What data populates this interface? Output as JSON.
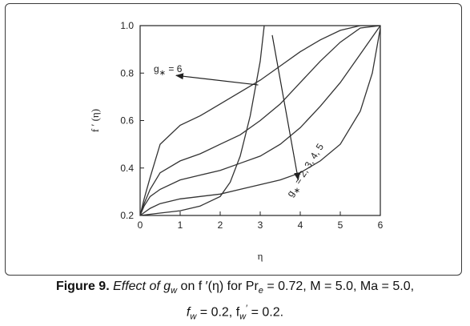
{
  "chart_data": {
    "type": "line",
    "xlabel": "η",
    "ylabel": "f ′ (η)",
    "xlim": [
      0,
      6
    ],
    "ylim": [
      0.2,
      1.0
    ],
    "x_ticks": [
      "0",
      "1",
      "2",
      "3",
      "4",
      "5",
      "6"
    ],
    "y_ticks": [
      "0.2",
      "0.4",
      "0.6",
      "0.8",
      "1.0"
    ],
    "grid": false,
    "legend": "none",
    "series": [
      {
        "x": [
          0,
          0.1,
          0.25,
          0.5,
          1,
          1.5,
          2,
          2.5,
          3,
          3.5,
          4,
          4.5,
          5,
          5.5,
          5.8,
          6.0
        ],
        "y": [
          0.2,
          0.27,
          0.36,
          0.5,
          0.58,
          0.62,
          0.67,
          0.72,
          0.77,
          0.83,
          0.89,
          0.94,
          0.98,
          1.0,
          1.0,
          1.0
        ]
      },
      {
        "x": [
          0,
          0.1,
          0.25,
          0.5,
          1,
          1.5,
          2,
          2.5,
          3,
          3.5,
          4,
          4.5,
          5,
          5.5,
          6.0
        ],
        "y": [
          0.2,
          0.25,
          0.31,
          0.38,
          0.43,
          0.46,
          0.5,
          0.54,
          0.6,
          0.67,
          0.76,
          0.85,
          0.93,
          0.99,
          1.0
        ]
      },
      {
        "x": [
          0,
          0.1,
          0.25,
          0.5,
          1,
          1.5,
          2,
          2.5,
          3,
          3.5,
          4,
          4.5,
          5,
          5.5,
          6.0
        ],
        "y": [
          0.2,
          0.24,
          0.28,
          0.31,
          0.35,
          0.37,
          0.39,
          0.42,
          0.45,
          0.5,
          0.57,
          0.66,
          0.76,
          0.88,
          1.0
        ]
      },
      {
        "x": [
          0,
          0.25,
          0.5,
          1,
          1.5,
          2,
          2.5,
          3,
          3.5,
          4,
          4.5,
          5,
          5.5,
          5.8,
          6.0
        ],
        "y": [
          0.2,
          0.23,
          0.25,
          0.27,
          0.28,
          0.29,
          0.31,
          0.33,
          0.35,
          0.38,
          0.43,
          0.5,
          0.64,
          0.8,
          0.99
        ]
      },
      {
        "x": [
          0,
          0.5,
          1,
          1.5,
          2,
          2.25,
          2.5,
          2.75,
          3.0,
          3.1
        ],
        "y": [
          0.2,
          0.21,
          0.22,
          0.24,
          0.28,
          0.34,
          0.45,
          0.62,
          0.85,
          1.0
        ]
      }
    ],
    "annotations": [
      {
        "text": "g",
        "subscript": "∗",
        "suffix": " = 6",
        "arrow_from": [
          2.95,
          0.75
        ],
        "arrow_to": [
          0.9,
          0.79
        ]
      },
      {
        "text": "g",
        "subscript": "∗",
        "suffix": " = 2, 3, 4, 5",
        "arrow_from": [
          3.3,
          0.96
        ],
        "arrow_to": [
          3.95,
          0.35
        ]
      }
    ],
    "line_color": "#333333"
  },
  "caption": {
    "label": "Figure 9.",
    "text": "Effect of g",
    "sub1": "w",
    "text2": " on f ′(η) for Pr",
    "sub2": "e",
    "text3": " = 0.72, M = 5.0, Ma = 5.0,",
    "line2a": "f",
    "sub3": "w",
    "line2b": " = 0.2, f",
    "sub4": "w",
    "sup4": "′",
    "line2c": " = 0.2."
  }
}
